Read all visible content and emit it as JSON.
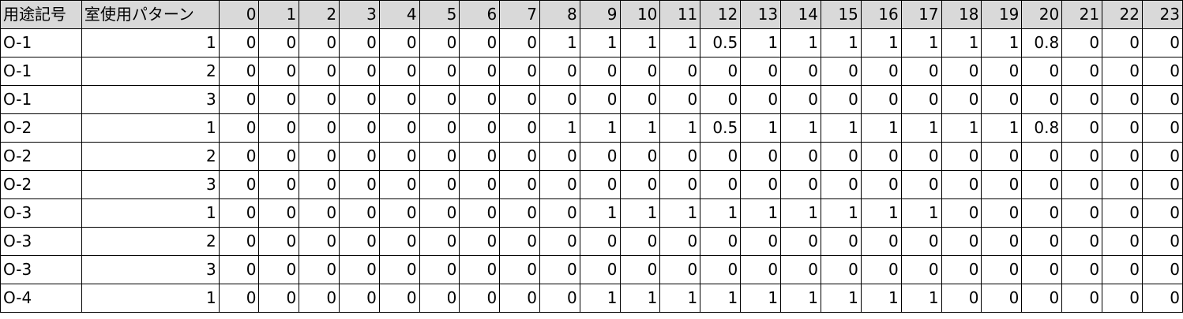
{
  "table": {
    "headers": [
      "用途記号",
      "室使用パターン",
      "0",
      "1",
      "2",
      "3",
      "4",
      "5",
      "6",
      "7",
      "8",
      "9",
      "10",
      "11",
      "12",
      "13",
      "14",
      "15",
      "16",
      "17",
      "18",
      "19",
      "20",
      "21",
      "22",
      "23"
    ],
    "rows": [
      [
        "O-1",
        "1",
        "0",
        "0",
        "0",
        "0",
        "0",
        "0",
        "0",
        "0",
        "1",
        "1",
        "1",
        "1",
        "0.5",
        "1",
        "1",
        "1",
        "1",
        "1",
        "1",
        "1",
        "0.8",
        "0",
        "0",
        "0"
      ],
      [
        "O-1",
        "2",
        "0",
        "0",
        "0",
        "0",
        "0",
        "0",
        "0",
        "0",
        "0",
        "0",
        "0",
        "0",
        "0",
        "0",
        "0",
        "0",
        "0",
        "0",
        "0",
        "0",
        "0",
        "0",
        "0",
        "0"
      ],
      [
        "O-1",
        "3",
        "0",
        "0",
        "0",
        "0",
        "0",
        "0",
        "0",
        "0",
        "0",
        "0",
        "0",
        "0",
        "0",
        "0",
        "0",
        "0",
        "0",
        "0",
        "0",
        "0",
        "0",
        "0",
        "0",
        "0"
      ],
      [
        "O-2",
        "1",
        "0",
        "0",
        "0",
        "0",
        "0",
        "0",
        "0",
        "0",
        "1",
        "1",
        "1",
        "1",
        "0.5",
        "1",
        "1",
        "1",
        "1",
        "1",
        "1",
        "1",
        "0.8",
        "0",
        "0",
        "0"
      ],
      [
        "O-2",
        "2",
        "0",
        "0",
        "0",
        "0",
        "0",
        "0",
        "0",
        "0",
        "0",
        "0",
        "0",
        "0",
        "0",
        "0",
        "0",
        "0",
        "0",
        "0",
        "0",
        "0",
        "0",
        "0",
        "0",
        "0"
      ],
      [
        "O-2",
        "3",
        "0",
        "0",
        "0",
        "0",
        "0",
        "0",
        "0",
        "0",
        "0",
        "0",
        "0",
        "0",
        "0",
        "0",
        "0",
        "0",
        "0",
        "0",
        "0",
        "0",
        "0",
        "0",
        "0",
        "0"
      ],
      [
        "O-3",
        "1",
        "0",
        "0",
        "0",
        "0",
        "0",
        "0",
        "0",
        "0",
        "0",
        "1",
        "1",
        "1",
        "1",
        "1",
        "1",
        "1",
        "1",
        "1",
        "0",
        "0",
        "0",
        "0",
        "0",
        "0"
      ],
      [
        "O-3",
        "2",
        "0",
        "0",
        "0",
        "0",
        "0",
        "0",
        "0",
        "0",
        "0",
        "0",
        "0",
        "0",
        "0",
        "0",
        "0",
        "0",
        "0",
        "0",
        "0",
        "0",
        "0",
        "0",
        "0",
        "0"
      ],
      [
        "O-3",
        "3",
        "0",
        "0",
        "0",
        "0",
        "0",
        "0",
        "0",
        "0",
        "0",
        "0",
        "0",
        "0",
        "0",
        "0",
        "0",
        "0",
        "0",
        "0",
        "0",
        "0",
        "0",
        "0",
        "0",
        "0"
      ],
      [
        "O-4",
        "1",
        "0",
        "0",
        "0",
        "0",
        "0",
        "0",
        "0",
        "0",
        "0",
        "1",
        "1",
        "1",
        "1",
        "1",
        "1",
        "1",
        "1",
        "1",
        "0",
        "0",
        "0",
        "0",
        "0",
        "0"
      ]
    ]
  }
}
